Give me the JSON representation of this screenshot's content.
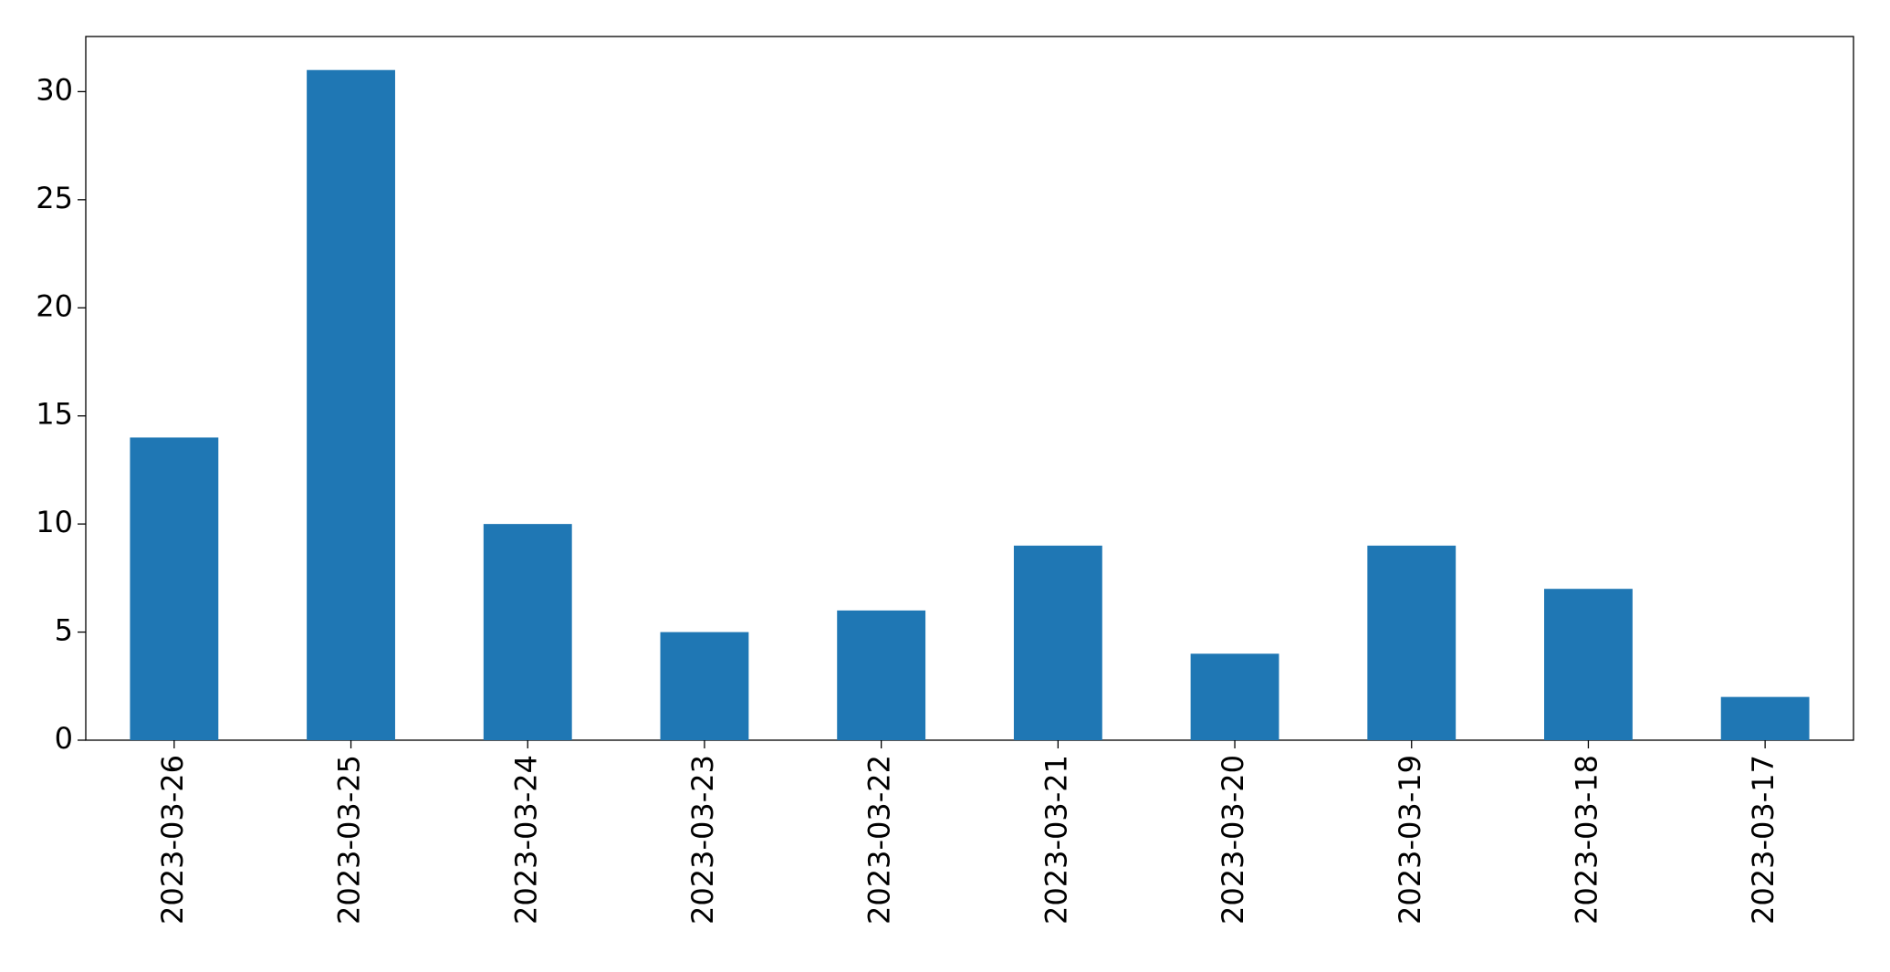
{
  "chart_data": {
    "type": "bar",
    "categories": [
      "2023-03-26",
      "2023-03-25",
      "2023-03-24",
      "2023-03-23",
      "2023-03-22",
      "2023-03-21",
      "2023-03-20",
      "2023-03-19",
      "2023-03-18",
      "2023-03-17"
    ],
    "values": [
      14,
      31,
      10,
      5,
      6,
      9,
      4,
      9,
      7,
      2
    ],
    "color": "#1f77b4",
    "ylim": [
      0,
      32.55
    ],
    "yticks": [
      0,
      5,
      10,
      15,
      20,
      25,
      30
    ],
    "grid": false
  }
}
